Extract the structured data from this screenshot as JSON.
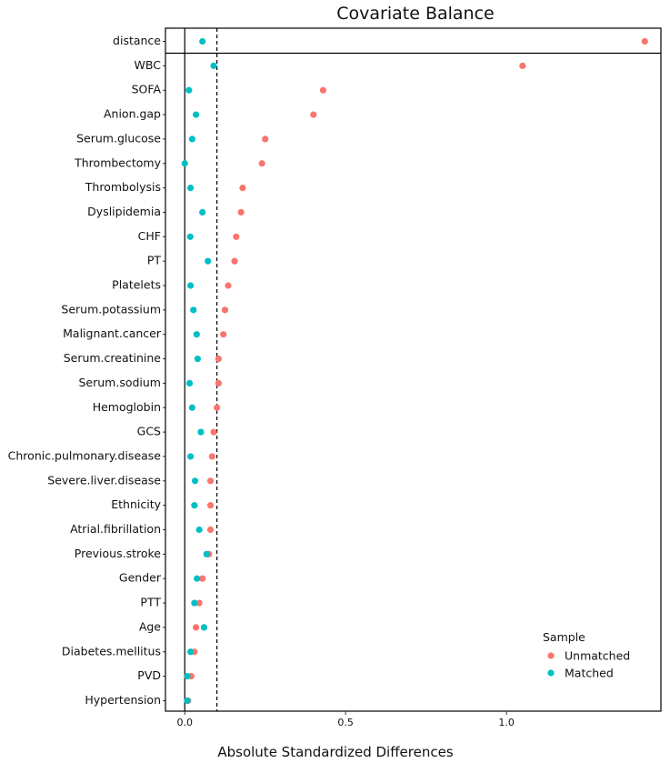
{
  "chart_data": {
    "type": "scatter",
    "title": "Covariate Balance",
    "xlabel": "Absolute Standardized Differences",
    "ylabel": "",
    "xlim": [
      -0.06,
      1.48
    ],
    "xticks": [
      0.0,
      0.5,
      1.0
    ],
    "xtick_labels": [
      "0.0",
      "0.5",
      "1.0"
    ],
    "threshold": 0.1,
    "categories": [
      "distance",
      "WBC",
      "SOFA",
      "Anion.gap",
      "Serum.glucose",
      "Thrombectomy",
      "Thrombolysis",
      "Dyslipidemia",
      "CHF",
      "PT",
      "Platelets",
      "Serum.potassium",
      "Malignant.cancer",
      "Serum.creatinine",
      "Serum.sodium",
      "Hemoglobin",
      "GCS",
      "Chronic.pulmonary.disease",
      "Severe.liver.disease",
      "Ethnicity",
      "Atrial.fibrillation",
      "Previous.stroke",
      "Gender",
      "PTT",
      "Age",
      "Diabetes.mellitus",
      "PVD",
      "Hypertension"
    ],
    "series": [
      {
        "name": "Unmatched",
        "color": "#F8766D",
        "values": [
          1.43,
          1.05,
          0.43,
          0.4,
          0.25,
          0.24,
          0.18,
          0.175,
          0.16,
          0.155,
          0.135,
          0.125,
          0.12,
          0.105,
          0.105,
          0.1,
          0.09,
          0.085,
          0.08,
          0.08,
          0.08,
          0.075,
          0.055,
          0.045,
          0.035,
          0.03,
          0.02,
          0.01
        ]
      },
      {
        "name": "Matched",
        "color": "#00BFC4",
        "values": [
          0.055,
          0.09,
          0.013,
          0.035,
          0.023,
          0.0,
          0.018,
          0.055,
          0.017,
          0.072,
          0.018,
          0.027,
          0.037,
          0.04,
          0.015,
          0.023,
          0.05,
          0.018,
          0.032,
          0.03,
          0.045,
          0.068,
          0.038,
          0.03,
          0.06,
          0.018,
          0.008,
          0.008
        ]
      }
    ],
    "legend": {
      "title": "Sample",
      "position": "bottom-right"
    }
  }
}
